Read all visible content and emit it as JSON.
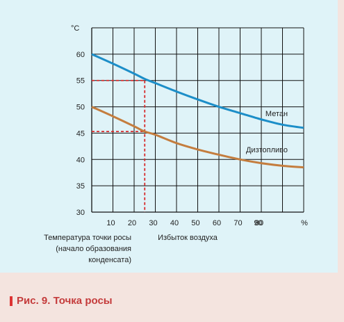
{
  "chart_data": {
    "type": "line",
    "ylabel": "°C",
    "xunit": "%",
    "xlabel": "Избыток воздуха",
    "ylabel_bottom": [
      "Температура точки росы",
      "(начало образования",
      "конденсата)"
    ],
    "xlim": [
      0,
      100
    ],
    "ylim": [
      30,
      65
    ],
    "xticks": [
      10,
      20,
      30,
      40,
      50,
      60,
      70,
      80,
      90
    ],
    "yticks": [
      30,
      35,
      40,
      45,
      50,
      55,
      60
    ],
    "grid": true,
    "series": [
      {
        "name": "Метан",
        "color": "#1c8ec8",
        "x": [
          0,
          10,
          20,
          25,
          30,
          40,
          50,
          60,
          70,
          80,
          90,
          100
        ],
        "y": [
          60,
          58.2,
          56.3,
          55.3,
          54.5,
          52.9,
          51.4,
          50.0,
          48.8,
          47.6,
          46.6,
          46.0
        ]
      },
      {
        "name": "Дизтопливо",
        "color": "#c47d3e",
        "x": [
          0,
          10,
          20,
          25,
          30,
          40,
          50,
          60,
          70,
          80,
          90,
          100
        ],
        "y": [
          50,
          48.2,
          46.3,
          45.3,
          44.7,
          43.1,
          41.9,
          40.9,
          40.0,
          39.3,
          38.8,
          38.5
        ]
      }
    ],
    "reference_lines": [
      {
        "x": 25,
        "y": 55
      },
      {
        "x": 25,
        "y": 45.3
      }
    ],
    "reference_color": "#d62a2a"
  },
  "caption": "Рис. 9. Точка росы"
}
